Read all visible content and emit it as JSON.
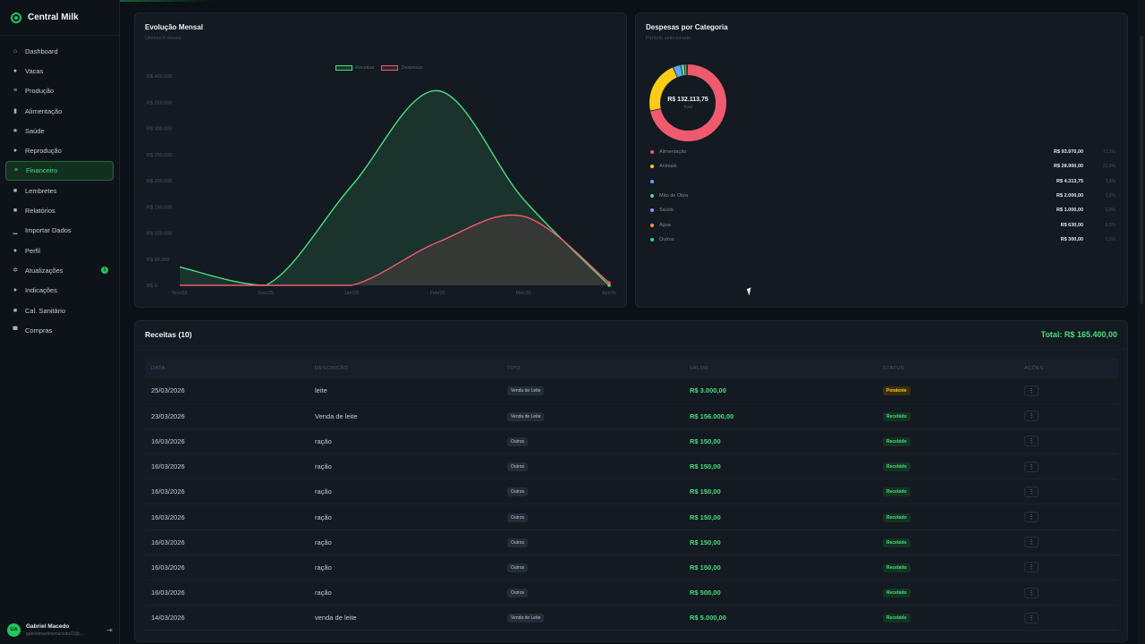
{
  "app": {
    "name": "Central Milk"
  },
  "sidebar": {
    "items": [
      {
        "label": "Dashboard",
        "icon": "⌂",
        "icon_name": "home-icon"
      },
      {
        "label": "Vacas",
        "icon": "●",
        "icon_name": "cow-icon"
      },
      {
        "label": "Produção",
        "icon": "≡",
        "icon_name": "production-icon"
      },
      {
        "label": "Alimentação",
        "icon": "▮",
        "icon_name": "feed-icon"
      },
      {
        "label": "Saúde",
        "icon": "★",
        "icon_name": "health-icon"
      },
      {
        "label": "Reprodução",
        "icon": "●",
        "icon_name": "reproduction-icon"
      },
      {
        "label": "Financeiro",
        "icon": "≡",
        "icon_name": "finance-icon",
        "active": true
      },
      {
        "label": "Lembretes",
        "icon": "■",
        "icon_name": "bell-icon"
      },
      {
        "label": "Relatórios",
        "icon": "■",
        "icon_name": "report-icon"
      },
      {
        "label": "Importar Dados",
        "icon": "▁",
        "icon_name": "import-icon"
      },
      {
        "label": "Perfil",
        "icon": "●",
        "icon_name": "user-icon"
      },
      {
        "label": "Atualizações",
        "icon": "✲",
        "icon_name": "updates-icon",
        "badge": "1"
      },
      {
        "label": "Indicações",
        "icon": "●",
        "icon_name": "referrals-icon"
      },
      {
        "label": "Cal. Sanitário",
        "icon": "■",
        "icon_name": "calendar-icon"
      },
      {
        "label": "Compras",
        "icon": "▀",
        "icon_name": "cart-icon"
      }
    ]
  },
  "user": {
    "initials": "GA",
    "name": "Gabriel Macedo",
    "email": "gabrielmartinsmacedo22@..."
  },
  "monthly_chart": {
    "title": "Evolução Mensal",
    "subtitle": "Últimos 6 meses",
    "legend": [
      "Receitas",
      "Despesas"
    ],
    "chart_data": {
      "type": "area",
      "categories": [
        "Nov/25",
        "Dec/25",
        "Jan/26",
        "Feb/26",
        "Mar/26",
        "Apr/26"
      ],
      "series": [
        {
          "name": "Receitas",
          "values": [
            35000,
            0,
            190000,
            372000,
            165000,
            0
          ],
          "color": "#4ade80"
        },
        {
          "name": "Despesas",
          "values": [
            0,
            0,
            0,
            82000,
            132000,
            5000
          ],
          "color": "#f05a6e"
        }
      ],
      "ytick_labels": [
        "R$ 0",
        "R$ 50.000",
        "R$ 100.000",
        "R$ 150.000",
        "R$ 200.000",
        "R$ 250.000",
        "R$ 300.000",
        "R$ 350.000",
        "R$ 400.000"
      ],
      "ylim": [
        0,
        400000
      ]
    }
  },
  "expenses": {
    "title": "Despesas por Categoria",
    "subtitle": "Período selecionado",
    "total": "R$ 132.113,75",
    "total_label": "Total",
    "chart_data": {
      "type": "pie",
      "categories": [
        "Alimentação",
        "Animais",
        "",
        "Mão de Obra",
        "Saúde",
        "Água",
        "Outros"
      ],
      "values": [
        93970,
        28900,
        4313.75,
        2000,
        1000,
        630,
        300
      ],
      "colors": [
        "#f05a6e",
        "#facc15",
        "#60a5fa",
        "#4ade80",
        "#a78bfa",
        "#fb923c",
        "#34d399"
      ]
    },
    "rows": [
      {
        "name": "Alimentação",
        "value": "R$ 93.970,00",
        "pct": "71,1%"
      },
      {
        "name": "Animais",
        "value": "R$ 28.900,00",
        "pct": "21,9%"
      },
      {
        "name": "",
        "value": "R$ 4.313,75",
        "pct": "3,3%"
      },
      {
        "name": "Mão de Obra",
        "value": "R$ 2.000,00",
        "pct": "1,5%"
      },
      {
        "name": "Saúde",
        "value": "R$ 1.000,00",
        "pct": "0,8%"
      },
      {
        "name": "Água",
        "value": "R$ 630,00",
        "pct": "0,5%"
      },
      {
        "name": "Outros",
        "value": "R$ 300,00",
        "pct": "0,2%"
      }
    ]
  },
  "receitas": {
    "title": "Receitas (10)",
    "total": "Total: R$ 165.400,00",
    "columns": [
      "DATA",
      "DESCRIÇÃO",
      "TIPO",
      "VALOR",
      "STATUS",
      "AÇÕES"
    ],
    "rows": [
      {
        "date": "25/03/2026",
        "desc": "leite",
        "type": "Venda de Leite",
        "value": "R$ 3.000,00",
        "status": "Pendente"
      },
      {
        "date": "23/03/2026",
        "desc": "Venda de leite",
        "type": "Venda de Leite",
        "value": "R$ 156.000,00",
        "status": "Recebido"
      },
      {
        "date": "16/03/2026",
        "desc": "ração",
        "type": "Outros",
        "value": "R$ 150,00",
        "status": "Recebido"
      },
      {
        "date": "16/03/2026",
        "desc": "ração",
        "type": "Outros",
        "value": "R$ 150,00",
        "status": "Recebido"
      },
      {
        "date": "16/03/2026",
        "desc": "ração",
        "type": "Outros",
        "value": "R$ 150,00",
        "status": "Recebido"
      },
      {
        "date": "16/03/2026",
        "desc": "ração",
        "type": "Outros",
        "value": "R$ 150,00",
        "status": "Recebido"
      },
      {
        "date": "16/03/2026",
        "desc": "ração",
        "type": "Outros",
        "value": "R$ 150,00",
        "status": "Recebido"
      },
      {
        "date": "16/03/2026",
        "desc": "ração",
        "type": "Outros",
        "value": "R$ 150,00",
        "status": "Recebido"
      },
      {
        "date": "16/03/2026",
        "desc": "ração",
        "type": "Outros",
        "value": "R$ 500,00",
        "status": "Recebido"
      },
      {
        "date": "14/03/2026",
        "desc": "venda de leite",
        "type": "Venda de Leite",
        "value": "R$ 5.000,00",
        "status": "Recebido"
      }
    ]
  }
}
